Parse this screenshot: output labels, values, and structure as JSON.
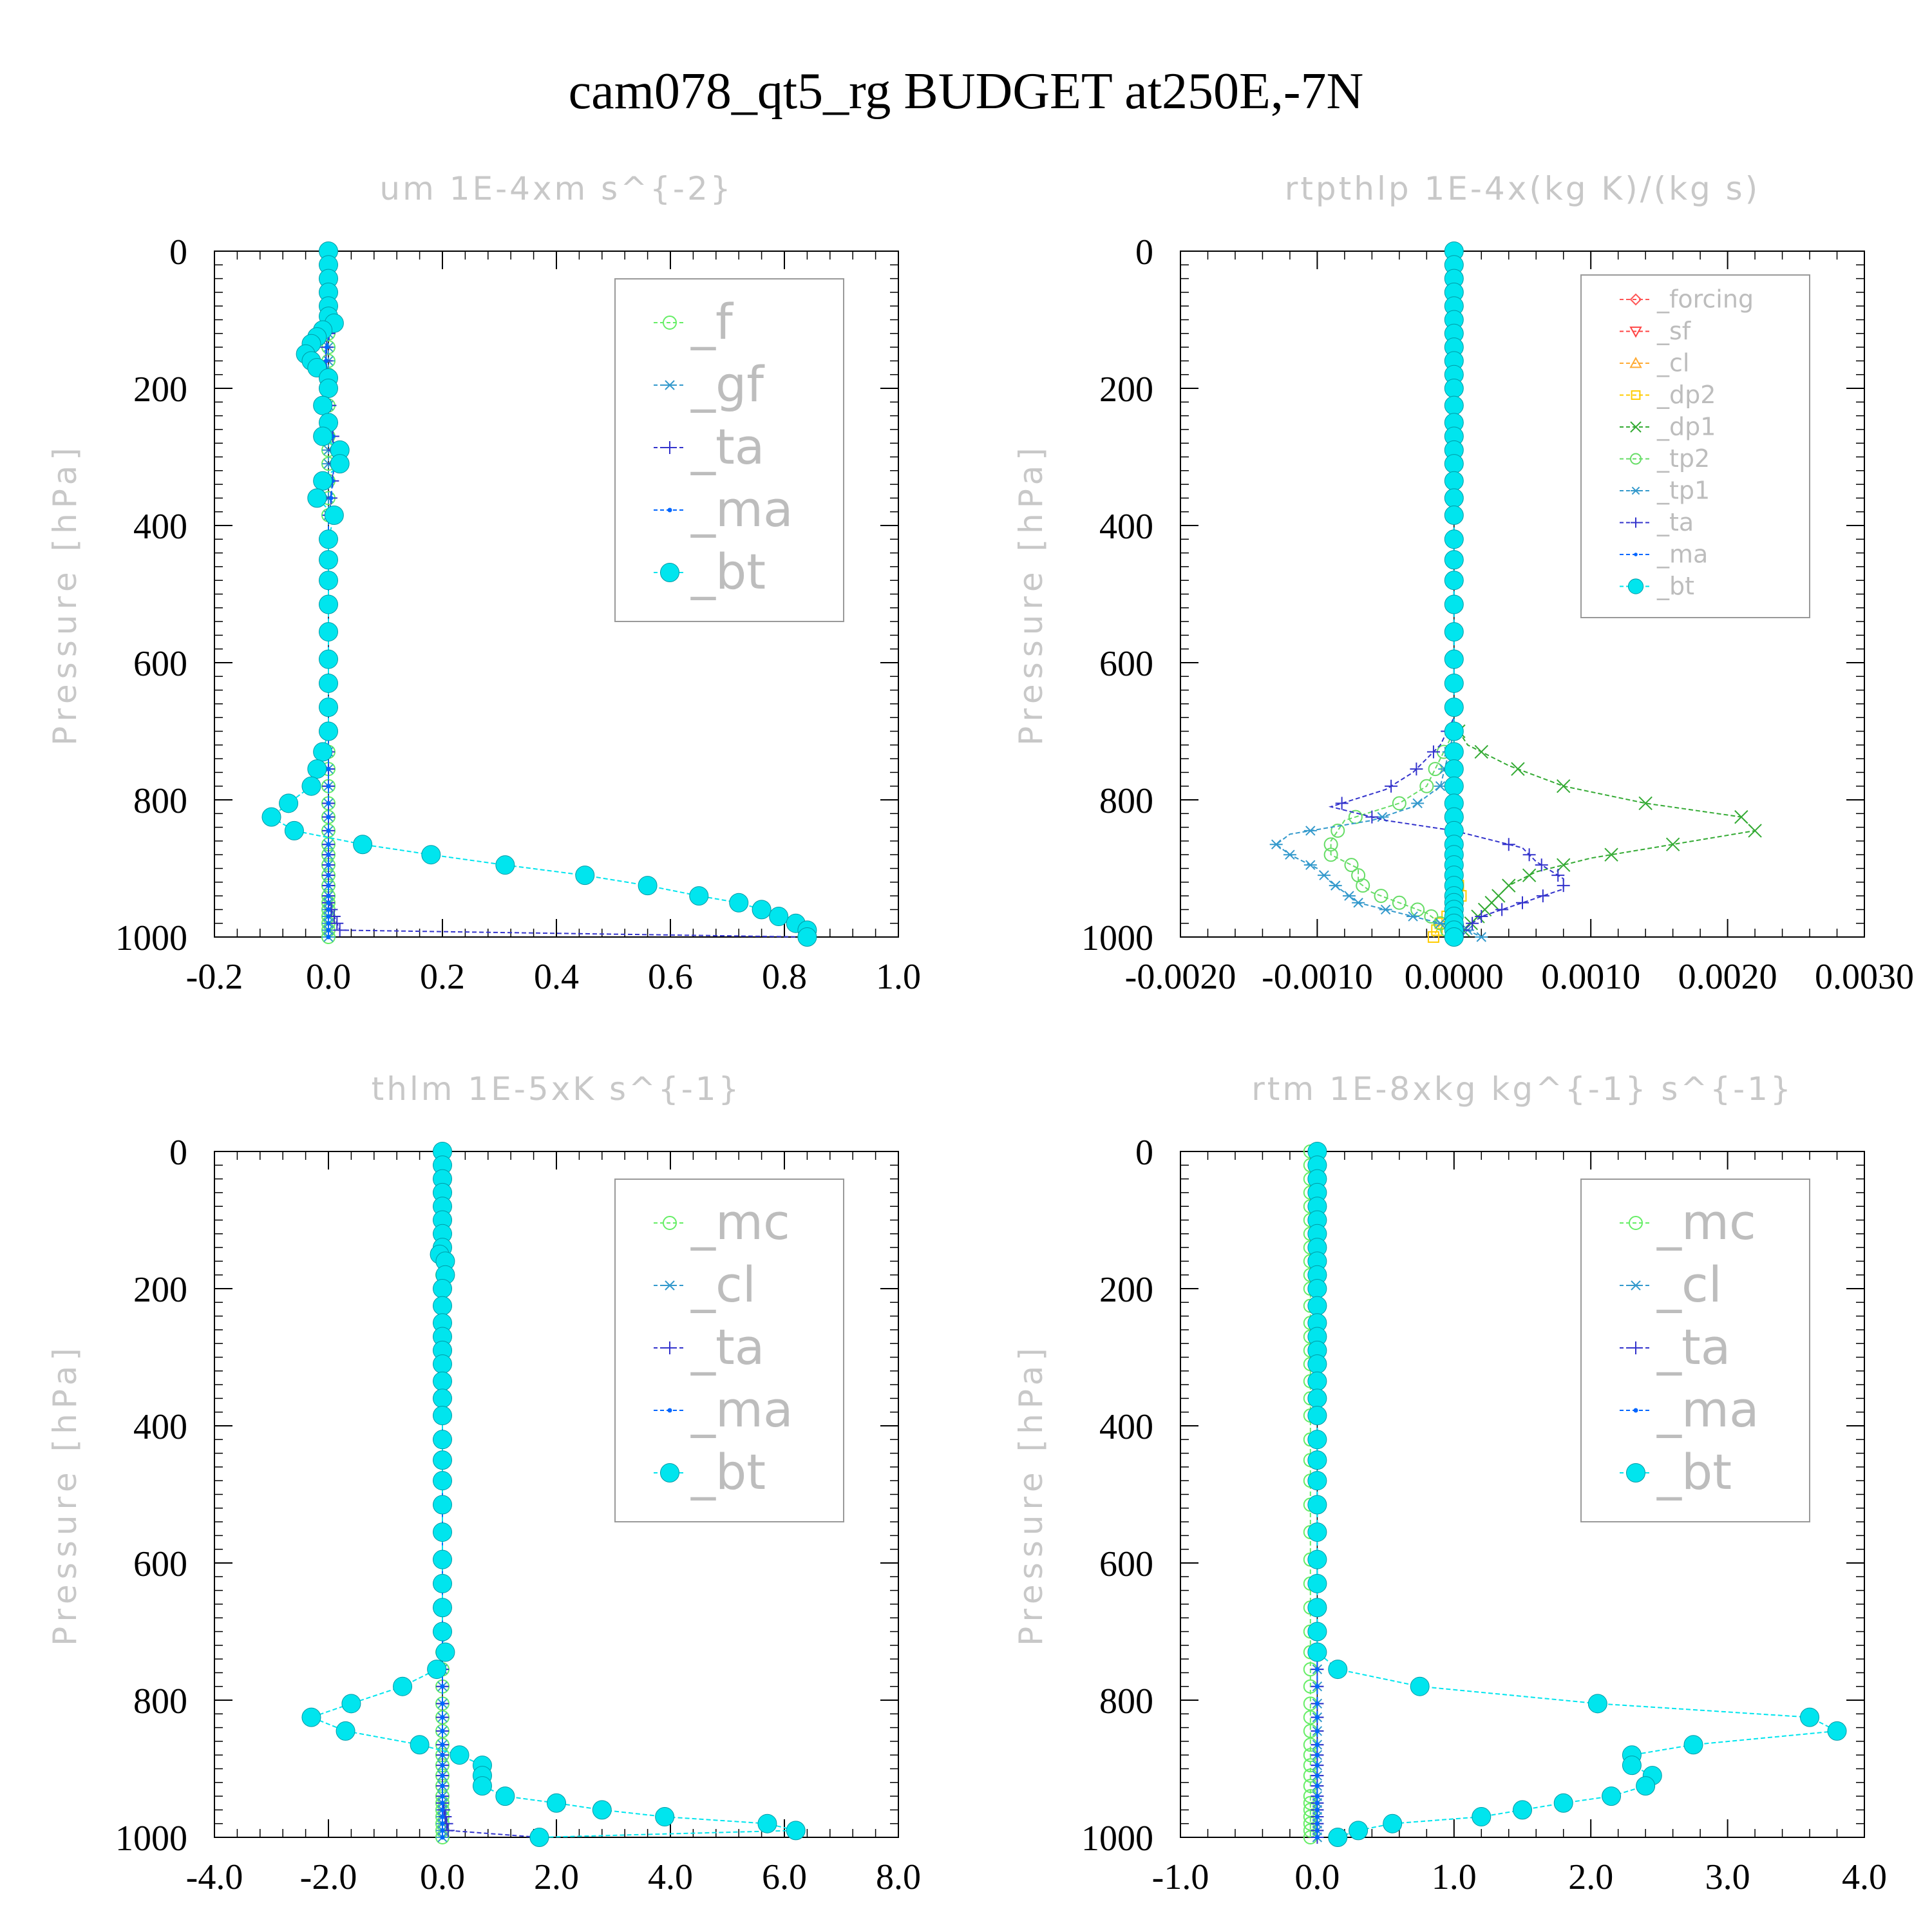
{
  "figure_title": "cam078_qt5_rg  BUDGET at250E,-7N",
  "chart_data": [
    {
      "type": "line",
      "title": "um  1E-4xm s^{-2}",
      "ylabel": "Pressure [hPa]",
      "xlim": [
        -0.2,
        1.0
      ],
      "ylim": [
        1000,
        0
      ],
      "xticks": [
        "-0.2",
        "0.0",
        "0.2",
        "0.4",
        "0.6",
        "0.8",
        "1.0"
      ],
      "yticks": [
        "0",
        "200",
        "400",
        "600",
        "800",
        "1000"
      ],
      "legend_position": "top-right",
      "series": [
        {
          "name": "_f",
          "color": "#66ee66",
          "marker": "circle-open",
          "y": [
            0,
            1000
          ],
          "x": [
            0.0,
            0.0
          ]
        },
        {
          "name": "_gf",
          "color": "#3399cc",
          "marker": "asterisk",
          "y": [
            0,
            1000
          ],
          "x": [
            0.0,
            0.0
          ]
        },
        {
          "name": "_ta",
          "color": "#3333cc",
          "marker": "plus",
          "y": [
            0,
            100,
            150,
            200,
            290,
            310,
            400,
            600,
            800,
            830,
            860,
            900,
            950,
            990,
            1000
          ],
          "x": [
            0.0,
            0.005,
            -0.005,
            0.0,
            0.01,
            0.01,
            0.0,
            0.0,
            0.0,
            0.0,
            0.0,
            0.0,
            0.0,
            0.02,
            0.84
          ]
        },
        {
          "name": "_ma",
          "color": "#0066ff",
          "marker": "dot",
          "y": [
            0,
            100,
            150,
            200,
            290,
            310,
            400,
            600,
            800,
            830,
            860,
            900,
            950,
            990,
            1000
          ],
          "x": [
            0.0,
            0.005,
            -0.005,
            0.0,
            0.01,
            0.01,
            0.0,
            0.0,
            0.0,
            0.0,
            0.0,
            0.0,
            0.0,
            0.0,
            0.0
          ]
        },
        {
          "name": "_bt",
          "color": "#00e5ee",
          "marker": "filled-circle",
          "y": [
            0,
            20,
            40,
            60,
            80,
            95,
            105,
            115,
            125,
            135,
            150,
            160,
            170,
            185,
            200,
            225,
            250,
            270,
            290,
            310,
            335,
            360,
            385,
            420,
            450,
            480,
            515,
            555,
            595,
            630,
            665,
            700,
            730,
            755,
            780,
            805,
            825,
            845,
            865,
            880,
            895,
            910,
            925,
            940,
            950,
            960,
            970,
            980,
            990,
            1000
          ],
          "x": [
            0.0,
            0.0,
            0.0,
            0.0,
            0.0,
            0.0,
            0.01,
            -0.01,
            -0.02,
            -0.03,
            -0.04,
            -0.03,
            -0.02,
            0.0,
            0.0,
            -0.01,
            0.0,
            -0.01,
            0.02,
            0.02,
            -0.01,
            -0.02,
            0.01,
            0.0,
            0.0,
            0.0,
            0.0,
            0.0,
            0.0,
            0.0,
            0.0,
            0.0,
            -0.01,
            -0.02,
            -0.03,
            -0.07,
            -0.1,
            -0.06,
            0.06,
            0.18,
            0.31,
            0.45,
            0.56,
            0.65,
            0.72,
            0.76,
            0.79,
            0.82,
            0.84,
            0.84
          ]
        }
      ]
    },
    {
      "type": "line",
      "title": "rtpthlp  1E-4x(kg K)/(kg s)",
      "ylabel": "Pressure [hPa]",
      "xlim": [
        -0.002,
        0.003
      ],
      "ylim": [
        1000,
        0
      ],
      "xticks": [
        "-0.0020",
        "-0.0010",
        "0.0000",
        "0.0010",
        "0.0020",
        "0.0030"
      ],
      "yticks": [
        "0",
        "200",
        "400",
        "600",
        "800",
        "1000"
      ],
      "legend_position": "top-right",
      "series": [
        {
          "name": "_forcing",
          "color": "#ff5555",
          "marker": "diamond",
          "y": [
            0,
            1000
          ],
          "x": [
            0.0,
            0.0
          ]
        },
        {
          "name": "_sf",
          "color": "#ff4444",
          "marker": "triangle-down",
          "y": [
            0,
            1000
          ],
          "x": [
            0.0,
            0.0
          ]
        },
        {
          "name": "_cl",
          "color": "#ffaa33",
          "marker": "triangle",
          "y": [
            0,
            1000
          ],
          "x": [
            0.0,
            0.0
          ]
        },
        {
          "name": "_dp2",
          "color": "#ffcc00",
          "marker": "square",
          "y": [
            0,
            700,
            800,
            900,
            940,
            960,
            980,
            1000
          ],
          "x": [
            0.0,
            0.0,
            0.0,
            0.0,
            5e-05,
            0.0,
            -0.0001,
            -0.00015
          ]
        },
        {
          "name": "_dp1",
          "color": "#33aa33",
          "marker": "x",
          "y": [
            0,
            690,
            720,
            750,
            780,
            805,
            825,
            845,
            865,
            885,
            905,
            925,
            945,
            965,
            985,
            1000
          ],
          "x": [
            0.0,
            0.0,
            0.0001,
            0.0004,
            0.0008,
            0.0014,
            0.0021,
            0.0022,
            0.0016,
            0.001,
            0.0006,
            0.0004,
            0.0003,
            0.0002,
            0.0001,
            0.0
          ]
        },
        {
          "name": "_tp2",
          "color": "#66dd66",
          "marker": "circle-open",
          "y": [
            0,
            700,
            780,
            805,
            830,
            860,
            880,
            900,
            920,
            935,
            950,
            965,
            980,
            1000
          ],
          "x": [
            0.0,
            0.0,
            -0.0002,
            -0.0004,
            -0.0008,
            -0.0009,
            -0.0009,
            -0.0007,
            -0.0007,
            -0.0006,
            -0.0004,
            -0.0002,
            -0.0001,
            0.0
          ]
        },
        {
          "name": "_tp1",
          "color": "#3399cc",
          "marker": "asterisk",
          "y": [
            0,
            700,
            780,
            810,
            830,
            850,
            865,
            880,
            900,
            920,
            935,
            950,
            970,
            990,
            1000
          ],
          "x": [
            0.0,
            0.0,
            -0.0001,
            -0.0003,
            -0.0006,
            -0.0012,
            -0.0013,
            -0.0012,
            -0.001,
            -0.0009,
            -0.0008,
            -0.0007,
            -0.0003,
            0.0001,
            0.0002
          ]
        },
        {
          "name": "_ta",
          "color": "#3333cc",
          "marker": "plus",
          "y": [
            0,
            680,
            720,
            760,
            785,
            810,
            830,
            845,
            870,
            890,
            915,
            930,
            950,
            970,
            985,
            1000
          ],
          "x": [
            0.0,
            0.0,
            -0.0001,
            -0.0003,
            -0.0005,
            -0.0009,
            -0.0005,
            0.0,
            0.0005,
            0.0006,
            0.0008,
            0.0008,
            0.0005,
            0.0002,
            0.0001,
            0.0
          ]
        },
        {
          "name": "_ma",
          "color": "#0066ff",
          "marker": "dot",
          "y": [
            0,
            1000
          ],
          "x": [
            0.0,
            0.0
          ]
        },
        {
          "name": "_bt",
          "color": "#00e5ee",
          "marker": "filled-circle",
          "y": [
            0,
            20,
            40,
            60,
            80,
            100,
            120,
            140,
            160,
            180,
            200,
            225,
            250,
            270,
            290,
            310,
            335,
            360,
            385,
            420,
            450,
            480,
            515,
            555,
            595,
            630,
            665,
            700,
            730,
            755,
            780,
            805,
            825,
            845,
            865,
            880,
            895,
            910,
            925,
            940,
            950,
            960,
            970,
            980,
            990,
            1000
          ],
          "x": [
            0,
            0,
            0,
            0,
            0,
            0,
            0,
            0,
            0,
            0,
            0,
            0,
            0,
            0,
            0,
            0,
            0,
            0,
            0,
            0,
            0,
            0,
            0,
            0,
            0,
            0,
            0,
            0,
            0,
            0,
            0,
            0,
            0,
            0,
            0,
            0,
            0,
            0,
            0,
            0,
            0,
            0,
            0,
            0,
            0,
            0
          ]
        }
      ]
    },
    {
      "type": "line",
      "title": "thlm  1E-5xK s^{-1}",
      "ylabel": "Pressure [hPa]",
      "xlim": [
        -4.0,
        8.0
      ],
      "ylim": [
        1000,
        0
      ],
      "xticks": [
        "-4.0",
        "-2.0",
        "0.0",
        "2.0",
        "4.0",
        "6.0",
        "8.0"
      ],
      "yticks": [
        "0",
        "200",
        "400",
        "600",
        "800",
        "1000"
      ],
      "legend_position": "top-right",
      "series": [
        {
          "name": "_mc",
          "color": "#66ee66",
          "marker": "circle-open",
          "y": [
            0,
            1000
          ],
          "x": [
            0.0,
            0.0
          ]
        },
        {
          "name": "_cl",
          "color": "#3399cc",
          "marker": "asterisk",
          "y": [
            0,
            1000
          ],
          "x": [
            0.0,
            0.0
          ]
        },
        {
          "name": "_ta",
          "color": "#3333cc",
          "marker": "plus",
          "y": [
            0,
            950,
            990,
            1000
          ],
          "x": [
            0.0,
            0.0,
            0.1,
            1.7
          ]
        },
        {
          "name": "_ma",
          "color": "#0066ff",
          "marker": "dot",
          "y": [
            0,
            1000
          ],
          "x": [
            0.0,
            0.0
          ]
        },
        {
          "name": "_bt",
          "color": "#00e5ee",
          "marker": "filled-circle",
          "y": [
            0,
            20,
            40,
            60,
            80,
            100,
            120,
            140,
            150,
            160,
            180,
            200,
            225,
            250,
            270,
            290,
            310,
            335,
            360,
            385,
            420,
            450,
            480,
            515,
            555,
            595,
            630,
            665,
            700,
            730,
            755,
            780,
            805,
            825,
            845,
            865,
            880,
            895,
            910,
            925,
            940,
            950,
            960,
            970,
            980,
            990,
            1000
          ],
          "x": [
            0.0,
            0.0,
            0.0,
            0.0,
            0.0,
            0.0,
            0.0,
            0.0,
            -0.05,
            0.05,
            0.05,
            0.0,
            0.0,
            0.0,
            0.0,
            0.0,
            0.0,
            0.0,
            0.0,
            0.0,
            0.0,
            0.0,
            0.0,
            0.0,
            0.0,
            0.0,
            0.0,
            0.0,
            0.0,
            0.05,
            -0.1,
            -0.7,
            -1.6,
            -2.3,
            -1.7,
            -0.4,
            0.3,
            0.7,
            0.7,
            0.7,
            1.1,
            2.0,
            2.8,
            3.9,
            5.7,
            6.2,
            1.7
          ]
        }
      ]
    },
    {
      "type": "line",
      "title": "rtm  1E-8xkg kg^{-1} s^{-1}",
      "ylabel": "Pressure [hPa]",
      "xlim": [
        -1.0,
        4.0
      ],
      "ylim": [
        1000,
        0
      ],
      "xticks": [
        "-1.0",
        "0.0",
        "1.0",
        "2.0",
        "3.0",
        "4.0"
      ],
      "yticks": [
        "0",
        "200",
        "400",
        "600",
        "800",
        "1000"
      ],
      "legend_position": "top-right",
      "series": [
        {
          "name": "_mc",
          "color": "#66ee66",
          "marker": "circle-open",
          "y": [
            0,
            1000
          ],
          "x": [
            -0.05,
            -0.05
          ]
        },
        {
          "name": "_cl",
          "color": "#3399cc",
          "marker": "asterisk",
          "y": [
            0,
            1000
          ],
          "x": [
            0.0,
            0.0
          ]
        },
        {
          "name": "_ta",
          "color": "#3333cc",
          "marker": "plus",
          "y": [
            0,
            1000
          ],
          "x": [
            0.0,
            0.0
          ]
        },
        {
          "name": "_ma",
          "color": "#0066ff",
          "marker": "dot",
          "y": [
            0,
            1000
          ],
          "x": [
            0.0,
            0.0
          ]
        },
        {
          "name": "_bt",
          "color": "#00e5ee",
          "marker": "filled-circle",
          "y": [
            0,
            20,
            40,
            60,
            80,
            100,
            120,
            140,
            160,
            180,
            200,
            225,
            250,
            270,
            290,
            310,
            335,
            360,
            385,
            420,
            450,
            480,
            515,
            555,
            595,
            630,
            665,
            700,
            730,
            755,
            780,
            805,
            825,
            845,
            865,
            880,
            895,
            910,
            925,
            940,
            950,
            960,
            970,
            980,
            990,
            1000
          ],
          "x": [
            0.0,
            0.0,
            0.0,
            0.0,
            0.0,
            0.0,
            0.0,
            0.0,
            0.0,
            0.0,
            0.0,
            0.0,
            0.0,
            0.0,
            0.0,
            0.0,
            0.0,
            0.0,
            0.0,
            0.0,
            0.0,
            0.0,
            0.0,
            0.0,
            0.0,
            0.0,
            0.0,
            0.0,
            0.0,
            0.15,
            0.75,
            2.05,
            3.6,
            3.8,
            2.75,
            2.3,
            2.3,
            2.45,
            2.4,
            2.15,
            1.8,
            1.5,
            1.2,
            0.55,
            0.3,
            0.15
          ]
        }
      ]
    }
  ]
}
